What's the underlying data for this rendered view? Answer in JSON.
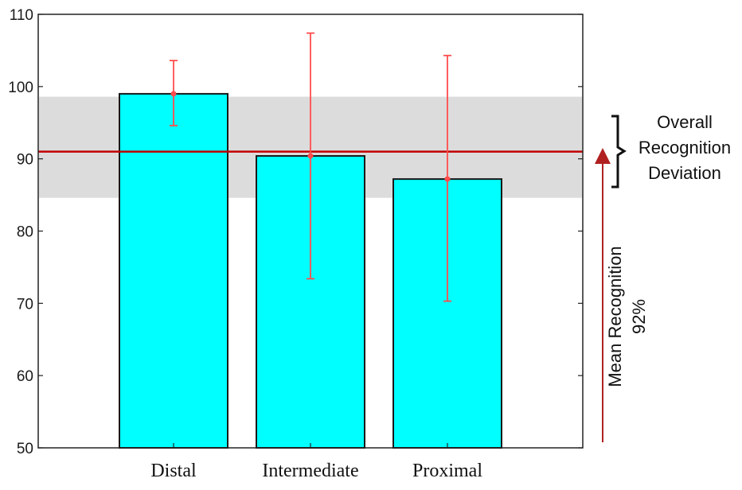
{
  "chart_data": {
    "type": "bar",
    "categories": [
      "Distal",
      "Intermediate",
      "Proximal"
    ],
    "values": [
      99,
      90.4,
      87.2
    ],
    "error_low": [
      94.6,
      73.4,
      70.3
    ],
    "error_high": [
      103.6,
      107.4,
      104.3
    ],
    "ylim": [
      50,
      110
    ],
    "yticks": [
      50,
      60,
      70,
      80,
      90,
      100,
      110
    ],
    "grid": false,
    "reference_line": {
      "value": 91,
      "color": "#c00000"
    },
    "deviation_band": {
      "low": 84.6,
      "high": 98.6,
      "color": "#dcdcdc"
    },
    "annotations": {
      "deviation_lines": [
        "Overall",
        "Recognition",
        "Deviation"
      ],
      "mean_lines": [
        "Mean Recognition",
        "92%"
      ]
    },
    "colors": {
      "bar_fill": "#00ffff",
      "bar_stroke": "#1a1a1a",
      "error_bar": "#ff4d4d",
      "mean_arrow": "#b02020",
      "band": "#dcdcdc",
      "reference_line": "#c00000"
    }
  }
}
